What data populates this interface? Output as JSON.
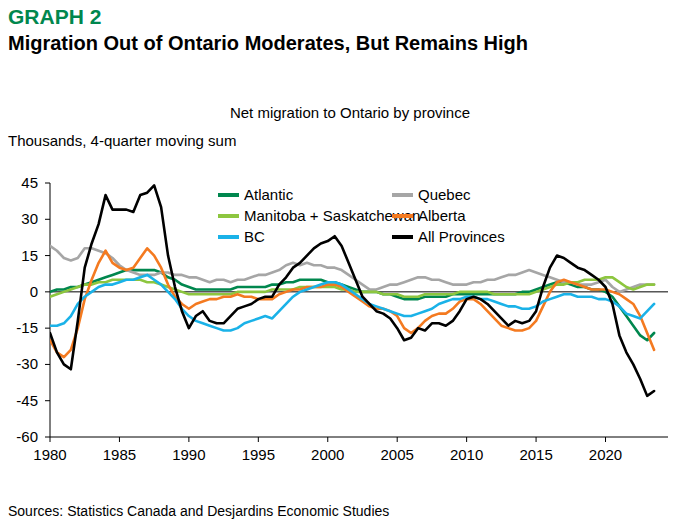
{
  "chart_data": {
    "type": "line",
    "supertitle": "GRAPH 2",
    "title": "Migration Out of Ontario Moderates, But Remains High",
    "subtitle": "Net migration to Ontario by province",
    "y_label": "Thousands, 4-quarter moving sum",
    "source": "Sources: Statistics Canada and Desjardins Economic Studies",
    "x": [
      1980,
      1980.5,
      1981,
      1981.5,
      1982,
      1982.5,
      1983,
      1983.5,
      1984,
      1984.5,
      1985,
      1985.5,
      1986,
      1986.5,
      1987,
      1987.5,
      1988,
      1988.5,
      1989,
      1989.5,
      1990,
      1990.5,
      1991,
      1991.5,
      1992,
      1992.5,
      1993,
      1993.5,
      1994,
      1994.5,
      1995,
      1995.5,
      1996,
      1996.5,
      1997,
      1997.5,
      1998,
      1998.5,
      1999,
      1999.5,
      2000,
      2000.5,
      2001,
      2001.5,
      2002,
      2002.5,
      2003,
      2003.5,
      2004,
      2004.5,
      2005,
      2005.5,
      2006,
      2006.5,
      2007,
      2007.5,
      2008,
      2008.5,
      2009,
      2009.5,
      2010,
      2010.5,
      2011,
      2011.5,
      2012,
      2012.5,
      2013,
      2013.5,
      2014,
      2014.5,
      2015,
      2015.5,
      2016,
      2016.5,
      2017,
      2017.5,
      2018,
      2018.5,
      2019,
      2019.5,
      2020,
      2020.5,
      2021,
      2021.5,
      2022,
      2022.5,
      2023,
      2023.5
    ],
    "series": [
      {
        "name": "Atlantic",
        "color": "#00874e",
        "values": [
          0,
          1,
          1,
          2,
          2,
          3,
          4,
          5,
          6,
          7,
          8,
          9,
          9,
          9,
          9,
          9,
          8,
          6,
          5,
          3,
          2,
          1,
          1,
          1,
          1,
          1,
          1,
          2,
          2,
          2,
          2,
          2,
          3,
          3,
          4,
          4,
          5,
          5,
          5,
          5,
          4,
          4,
          3,
          2,
          1,
          0,
          0,
          0,
          -1,
          -1,
          -2,
          -3,
          -3,
          -3,
          -2,
          -2,
          -2,
          -2,
          -1,
          -1,
          -1,
          -1,
          -1,
          -1,
          -1,
          -1,
          -1,
          -1,
          0,
          0,
          1,
          2,
          3,
          4,
          4,
          3,
          2,
          2,
          1,
          1,
          0,
          -2,
          -6,
          -10,
          -14,
          -18,
          -20,
          -17
        ]
      },
      {
        "name": "Quebec",
        "color": "#a6a6a6",
        "values": [
          19,
          17,
          14,
          13,
          14,
          18,
          18,
          17,
          16,
          14,
          11,
          9,
          8,
          7,
          7,
          7,
          8,
          8,
          7,
          7,
          6,
          6,
          5,
          4,
          5,
          5,
          4,
          5,
          5,
          6,
          7,
          7,
          8,
          9,
          11,
          12,
          11,
          12,
          11,
          11,
          10,
          10,
          9,
          7,
          5,
          3,
          1,
          1,
          2,
          3,
          3,
          4,
          5,
          6,
          6,
          5,
          5,
          4,
          3,
          3,
          3,
          4,
          4,
          5,
          5,
          6,
          7,
          7,
          8,
          9,
          8,
          7,
          6,
          5,
          4,
          4,
          3,
          3,
          3,
          4,
          5,
          2,
          0,
          1,
          2,
          3,
          3,
          3
        ]
      },
      {
        "name": "Manitoba + Saskatchewan",
        "color": "#8dc63f",
        "values": [
          -2,
          -1,
          0,
          1,
          2,
          3,
          3,
          4,
          4,
          5,
          5,
          5,
          5,
          5,
          4,
          4,
          3,
          2,
          1,
          0,
          -1,
          -1,
          -1,
          -1,
          -1,
          -1,
          -1,
          0,
          0,
          0,
          0,
          0,
          1,
          1,
          1,
          1,
          2,
          2,
          2,
          2,
          2,
          2,
          1,
          1,
          0,
          0,
          0,
          0,
          -1,
          -1,
          -1,
          -2,
          -2,
          -2,
          -1,
          -1,
          -1,
          -1,
          -1,
          0,
          0,
          0,
          0,
          0,
          -1,
          -1,
          -1,
          -1,
          -1,
          -1,
          0,
          1,
          2,
          3,
          3,
          4,
          4,
          5,
          5,
          5,
          6,
          6,
          4,
          2,
          1,
          2,
          3,
          3
        ]
      },
      {
        "name": "Alberta",
        "color": "#f47a20",
        "values": [
          -20,
          -25,
          -27,
          -24,
          -15,
          -3,
          5,
          12,
          17,
          12,
          10,
          9,
          10,
          14,
          18,
          15,
          10,
          3,
          -2,
          -5,
          -7,
          -5,
          -4,
          -3,
          -3,
          -2,
          -2,
          -1,
          -2,
          -2,
          -3,
          -3,
          -3,
          -1,
          0,
          1,
          1,
          2,
          2,
          2,
          3,
          3,
          2,
          0,
          -2,
          -4,
          -6,
          -7,
          -7,
          -8,
          -10,
          -15,
          -17,
          -15,
          -12,
          -10,
          -9,
          -9,
          -7,
          -4,
          -3,
          -3,
          -5,
          -8,
          -11,
          -14,
          -15,
          -16,
          -16,
          -15,
          -12,
          -6,
          0,
          4,
          5,
          4,
          3,
          2,
          1,
          1,
          1,
          0,
          -1,
          -3,
          -5,
          -10,
          -17,
          -24
        ]
      },
      {
        "name": "BC",
        "color": "#1ab2e8",
        "values": [
          -14,
          -14,
          -13,
          -10,
          -5,
          -2,
          0,
          2,
          3,
          3,
          4,
          5,
          5,
          6,
          7,
          5,
          3,
          0,
          -3,
          -7,
          -10,
          -12,
          -13,
          -14,
          -15,
          -16,
          -16,
          -15,
          -13,
          -12,
          -11,
          -10,
          -11,
          -8,
          -5,
          -2,
          0,
          1,
          2,
          3,
          4,
          4,
          3,
          1,
          -1,
          -3,
          -5,
          -6,
          -7,
          -8,
          -9,
          -10,
          -10,
          -9,
          -8,
          -7,
          -5,
          -4,
          -3,
          -3,
          -2,
          -2,
          -3,
          -3,
          -4,
          -5,
          -6,
          -6,
          -7,
          -7,
          -6,
          -4,
          -3,
          -2,
          -1,
          -1,
          -2,
          -2,
          -2,
          -3,
          -3,
          -4,
          -6,
          -9,
          -10,
          -11,
          -8,
          -5
        ]
      },
      {
        "name": "All Provinces",
        "color": "#000000",
        "values": [
          -17,
          -25,
          -30,
          -32,
          -12,
          10,
          20,
          28,
          40,
          34,
          34,
          34,
          33,
          40,
          41,
          44,
          35,
          15,
          2,
          -8,
          -15,
          -10,
          -8,
          -12,
          -13,
          -13,
          -10,
          -7,
          -6,
          -5,
          -3,
          -2,
          -2,
          3,
          6,
          10,
          12,
          15,
          18,
          20,
          21,
          23,
          19,
          12,
          5,
          -2,
          -5,
          -8,
          -9,
          -11,
          -15,
          -20,
          -19,
          -15,
          -16,
          -13,
          -13,
          -14,
          -12,
          -8,
          -3,
          -2,
          -3,
          -5,
          -8,
          -11,
          -14,
          -12,
          -13,
          -12,
          -8,
          2,
          10,
          15,
          14,
          12,
          10,
          9,
          7,
          5,
          2,
          -5,
          -18,
          -25,
          -30,
          -36,
          -43,
          -41
        ]
      }
    ],
    "xlim": [
      1980,
      2024.5
    ],
    "xticks": [
      1980,
      1985,
      1990,
      1995,
      2000,
      2005,
      2010,
      2015,
      2020
    ],
    "ylim": [
      -60,
      45
    ],
    "yticks": [
      -60,
      -45,
      -30,
      -15,
      0,
      15,
      30,
      45
    ],
    "grid": false,
    "legend": "top"
  }
}
